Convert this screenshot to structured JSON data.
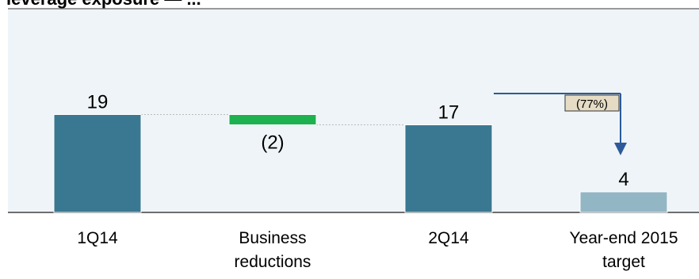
{
  "colors": {
    "plot_background": "#eef4f7",
    "divider": "#9a9a9a",
    "baseline": "#6e6e6e",
    "bar_primary": "#3a7891",
    "bar_target": "#93b6c4",
    "bar_reduction": "#1db24f",
    "connector": "#bbbbbb",
    "arrow": "#2c5a9b",
    "annotation_fill": "#e6dcc5",
    "text": "#000000"
  },
  "page": {
    "title": "leverage exposure — ..."
  },
  "chart_data": {
    "type": "bar",
    "subtype": "waterfall",
    "categories": [
      [
        "1Q14"
      ],
      [
        "Business",
        "reductions"
      ],
      [
        "2Q14"
      ],
      [
        "Year-end 2015",
        "target"
      ]
    ],
    "values": [
      19,
      -2,
      17,
      4
    ],
    "value_labels": [
      "19",
      "(2)",
      "17",
      "4"
    ],
    "bar_kinds": [
      "total",
      "change",
      "total",
      "target"
    ],
    "ylim": [
      0,
      21
    ],
    "annotation": {
      "label": "(77%)",
      "from_category": 2,
      "to_category": 3
    },
    "grid": false,
    "legend": "none"
  }
}
